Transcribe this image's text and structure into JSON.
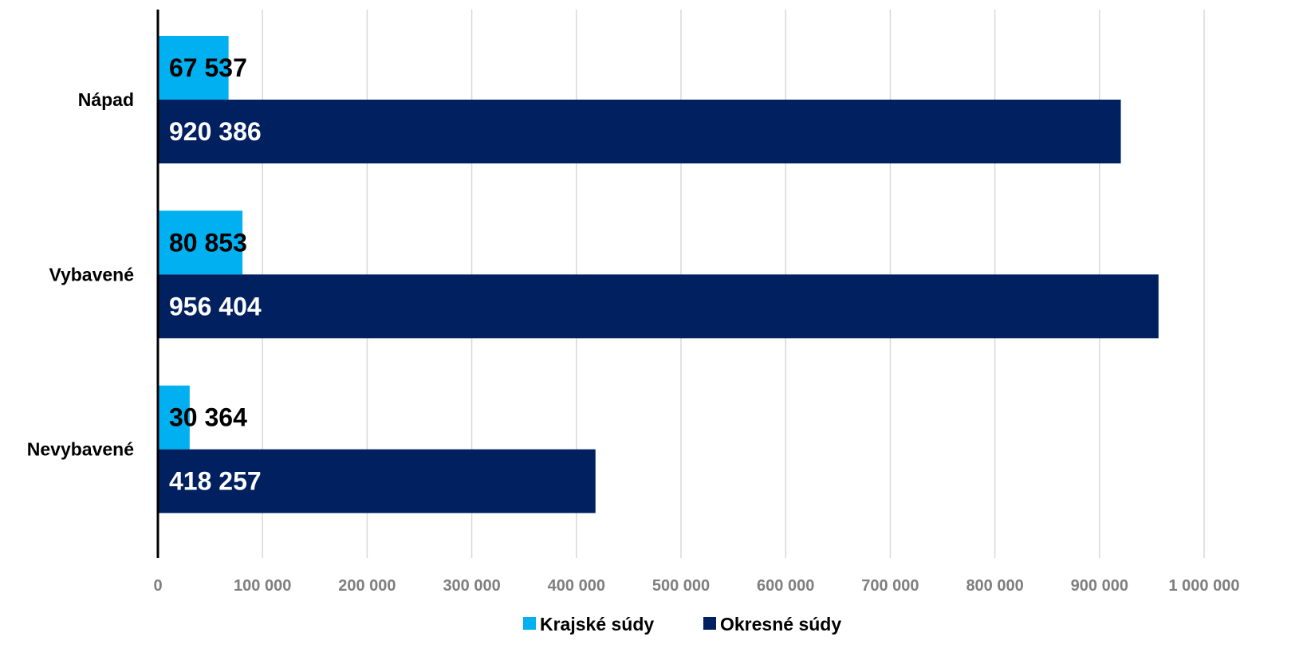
{
  "chart_data": {
    "type": "bar",
    "orientation": "horizontal",
    "categories": [
      "Nápad",
      "Vybavené",
      "Nevybavené"
    ],
    "series": [
      {
        "name": "Krajské súdy",
        "values": [
          67537,
          80853,
          30364
        ],
        "labels": [
          "67 537",
          "80 853",
          "30 364"
        ],
        "color": "#00b0f0",
        "label_color": "#000000"
      },
      {
        "name": "Okresné súdy",
        "values": [
          920386,
          956404,
          418257
        ],
        "labels": [
          "920 386",
          "956 404",
          "418 257"
        ],
        "color": "#002060",
        "label_color": "#ffffff"
      }
    ],
    "xlim": [
      0,
      1000000
    ],
    "x_ticks": [
      0,
      100000,
      200000,
      300000,
      400000,
      500000,
      600000,
      700000,
      800000,
      900000,
      1000000
    ],
    "x_tick_labels": [
      "0",
      "100 000",
      "200 000",
      "300 000",
      "400 000",
      "500 000",
      "600 000",
      "700 000",
      "800 000",
      "900 000",
      "1 000 000"
    ],
    "grid": "vertical",
    "legend_position": "bottom",
    "title": "",
    "xlabel": "",
    "ylabel": ""
  }
}
